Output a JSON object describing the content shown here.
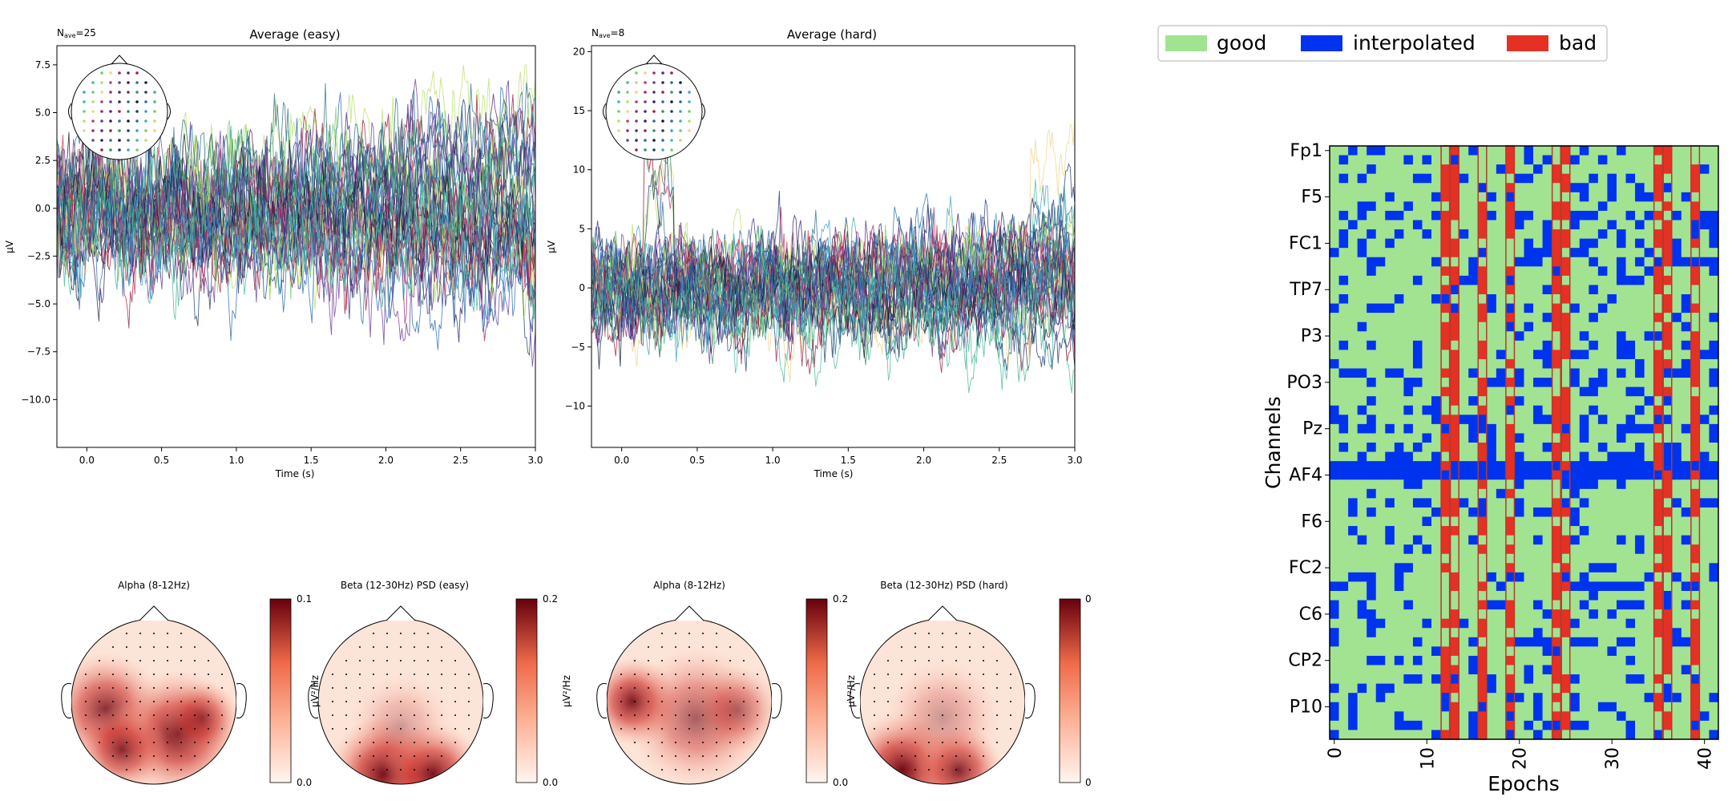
{
  "colors": {
    "good": "#a1e391",
    "interpolated": "#0033ee",
    "bad": "#e53124",
    "topo_low": "#fff5f0",
    "topo_mid": "#ef6b4a",
    "topo_high": "#67000d"
  },
  "chart_data": [
    {
      "id": "evoked_easy",
      "type": "line",
      "title": "Average (easy)",
      "nave_label": "Nave=25",
      "nave_prefix": "N",
      "nave_sub": "ave",
      "nave_value": "=25",
      "xlabel": "Time (s)",
      "ylabel": "µV",
      "xlim": [
        -0.2,
        3.0
      ],
      "ylim": [
        -12.5,
        8.5
      ],
      "xticks": [
        "0.0",
        "0.5",
        "1.0",
        "1.5",
        "2.0",
        "2.5",
        "3.0"
      ],
      "yticks": [
        "7.5",
        "5.0",
        "2.5",
        "0.0",
        "−2.5",
        "−5.0",
        "−7.5",
        "−10.0"
      ],
      "sensor_inset": true
    },
    {
      "id": "evoked_hard",
      "type": "line",
      "title": "Average (hard)",
      "nave_label": "Nave=8",
      "nave_prefix": "N",
      "nave_sub": "ave",
      "nave_value": "=8",
      "xlabel": "Time (s)",
      "ylabel": "µV",
      "xlim": [
        -0.2,
        3.0
      ],
      "ylim": [
        -13.5,
        20.5
      ],
      "xticks": [
        "0.0",
        "0.5",
        "1.0",
        "1.5",
        "2.0",
        "2.5",
        "3.0"
      ],
      "yticks": [
        "20",
        "15",
        "10",
        "5",
        "0",
        "−5",
        "−10"
      ],
      "sensor_inset": true
    },
    {
      "id": "topomaps",
      "type": "heatmap",
      "maps": [
        {
          "title": "Alpha (8-12Hz)",
          "colorbar_max": "0.1",
          "colorbar_min": "0.0",
          "unit": ""
        },
        {
          "title": "Beta (12-30Hz) PSD (easy)",
          "colorbar_max": "0.2",
          "colorbar_min": "0.0",
          "unit": "µV²/Hz"
        },
        {
          "title": "Alpha (8-12Hz)",
          "colorbar_max": "0.2",
          "colorbar_min": "0.0",
          "unit": ""
        },
        {
          "title": "Beta (12-30Hz) PSD (hard)",
          "colorbar_max": "0",
          "colorbar_min": "0",
          "unit": "µV²/Hz"
        }
      ]
    },
    {
      "id": "reject_log",
      "type": "heatmap",
      "xlabel": "Epochs",
      "ylabel": "Channels",
      "xticks": [
        "0",
        "10",
        "20",
        "30",
        "40"
      ],
      "yticks": [
        "Fp1",
        "F5",
        "FC1",
        "TP7",
        "P3",
        "PO3",
        "Pz",
        "AF4",
        "F6",
        "FC2",
        "C6",
        "CP2",
        "P10"
      ],
      "n_epochs": 42,
      "n_channels": 64,
      "bad_epochs": [
        12,
        13,
        16,
        19,
        24,
        25,
        35,
        36,
        39
      ],
      "legend": [
        {
          "label": "good",
          "color": "#a1e391"
        },
        {
          "label": "interpolated",
          "color": "#0033ee"
        },
        {
          "label": "bad",
          "color": "#e53124"
        }
      ]
    }
  ]
}
